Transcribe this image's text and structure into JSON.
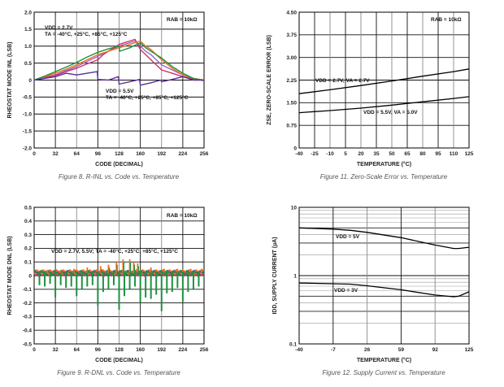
{
  "chart_data": [
    {
      "type": "line",
      "caption": "Figure 8. R-INL vs. Code vs. Temperature",
      "xlabel": "CODE (DECIMAL)",
      "ylabel": "RHEOSTAT MODE INL (LSB)",
      "xlim": [
        0,
        256
      ],
      "ylim": [
        -2.0,
        2.0
      ],
      "xticks": [
        "0",
        "32",
        "64",
        "96",
        "128",
        "160",
        "192",
        "224",
        "256"
      ],
      "yticks": [
        "2.0",
        "1.5",
        "1.0",
        "0.5",
        "0",
        "-0.5",
        "-1.0",
        "-1.5",
        "-2.0"
      ],
      "grid": true,
      "annotations": [
        "RAB = 10kΩ",
        "VDD = 2.7V",
        "TA = -40°C, +25°C, +85°C, +125°C",
        "VDD = 5.5V",
        "TA = -40°C, +25°C, +85°C, +125°C"
      ],
      "series": [
        {
          "color": "#8e6bbf",
          "x": [
            0,
            16,
            32,
            48,
            64,
            80,
            96,
            112,
            128,
            144,
            152,
            160,
            168,
            176,
            184,
            192,
            208,
            224,
            240,
            256
          ],
          "y": [
            0,
            0.08,
            0.15,
            0.28,
            0.4,
            0.55,
            0.7,
            0.85,
            1.0,
            1.1,
            1.15,
            1.0,
            0.85,
            0.75,
            0.6,
            0.45,
            0.3,
            0.15,
            0.05,
            0
          ]
        },
        {
          "color": "#d0306a",
          "x": [
            0,
            16,
            32,
            48,
            64,
            80,
            96,
            104,
            112,
            128,
            136,
            144,
            152,
            160,
            168,
            176,
            184,
            192,
            208,
            224,
            240,
            256
          ],
          "y": [
            0,
            0.07,
            0.14,
            0.25,
            0.35,
            0.48,
            0.6,
            0.75,
            0.85,
            1.05,
            1.1,
            1.15,
            1.2,
            0.9,
            0.75,
            0.6,
            0.45,
            0.3,
            0.2,
            0.1,
            0.03,
            0
          ]
        },
        {
          "color": "#f07020",
          "x": [
            0,
            16,
            32,
            48,
            64,
            80,
            96,
            112,
            128,
            144,
            160,
            168,
            176,
            184,
            192,
            208,
            224,
            240,
            256
          ],
          "y": [
            0,
            0.1,
            0.2,
            0.32,
            0.45,
            0.6,
            0.75,
            0.85,
            0.95,
            1.05,
            1.15,
            1.0,
            0.9,
            0.75,
            0.6,
            0.35,
            0.15,
            0.05,
            0
          ]
        },
        {
          "color": "#1e9040",
          "x": [
            0,
            16,
            32,
            48,
            64,
            80,
            96,
            112,
            128,
            129,
            144,
            160,
            168,
            176,
            184,
            192,
            208,
            224,
            240,
            256
          ],
          "y": [
            0,
            0.12,
            0.25,
            0.38,
            0.52,
            0.68,
            0.82,
            0.92,
            1.0,
            0.85,
            0.95,
            1.1,
            0.95,
            0.85,
            0.75,
            0.65,
            0.4,
            0.2,
            0.05,
            -0.02
          ]
        },
        {
          "color": "#5a2d9a",
          "x": [
            0,
            16,
            32,
            48,
            64,
            80,
            95,
            96,
            112,
            127,
            128,
            144,
            159,
            160,
            176,
            191,
            192,
            208,
            224,
            240,
            256
          ],
          "y": [
            0,
            0.05,
            0.1,
            0.2,
            0.15,
            0.2,
            0.25,
            0.02,
            0.0,
            0.1,
            -0.12,
            -0.05,
            0.02,
            -0.15,
            -0.08,
            0.0,
            -0.05,
            0.02,
            0.1,
            0.0,
            0.0
          ]
        }
      ]
    },
    {
      "type": "line",
      "caption": "Figure 11. Zero-Scale Error vs. Temperature",
      "xlabel": "TEMPERATURE (°C)",
      "ylabel": "ZSE, ZERO-SCALE ERROR (LSB)",
      "xlim": [
        -40,
        125
      ],
      "ylim": [
        0,
        4.5
      ],
      "xticks": [
        "-40",
        "-25",
        "-10",
        "5",
        "20",
        "35",
        "50",
        "65",
        "80",
        "95",
        "110",
        "125"
      ],
      "yticks": [
        "4.50",
        "3.75",
        "3.00",
        "2.25",
        "1.50",
        "0.75",
        "0"
      ],
      "grid": true,
      "annotations": [
        "RAB = 10kΩ",
        "VDD = 2.7V, VA = 2.7V",
        "VDD = 5.5V, VA = 5.0V"
      ],
      "series": [
        {
          "color": "#000000",
          "x": [
            -40,
            -10,
            20,
            50,
            80,
            110,
            125
          ],
          "y": [
            1.8,
            1.93,
            2.07,
            2.22,
            2.38,
            2.53,
            2.62
          ]
        },
        {
          "color": "#000000",
          "x": [
            -40,
            -10,
            20,
            50,
            80,
            110,
            125
          ],
          "y": [
            1.17,
            1.24,
            1.32,
            1.42,
            1.53,
            1.64,
            1.7
          ]
        }
      ]
    },
    {
      "type": "line",
      "caption": "Figure 9. R-DNL vs. Code vs. Temperature",
      "xlabel": "CODE (DECIMAL)",
      "ylabel": "RHEOSTAT MODE DNL (LSB)",
      "xlim": [
        0,
        256
      ],
      "ylim": [
        -0.5,
        0.5
      ],
      "xticks": [
        "0",
        "32",
        "64",
        "96",
        "128",
        "160",
        "192",
        "224",
        "256"
      ],
      "yticks": [
        "0.5",
        "0.4",
        "0.3",
        "0.2",
        "0.1",
        "0",
        "-0.1",
        "-0.2",
        "-0.3",
        "-0.4",
        "-0.5"
      ],
      "grid": true,
      "annotations": [
        "RAB = 10kΩ",
        "VDD = 2.7V, 5.5V; TA = -40°C, +25°C, +85°C, +125°C"
      ],
      "series": [
        {
          "color": "#1e9040",
          "x": [
            8,
            16,
            24,
            32,
            40,
            48,
            56,
            64,
            72,
            80,
            88,
            96,
            104,
            112,
            120,
            128,
            136,
            144,
            152,
            160,
            168,
            176,
            184,
            192,
            200,
            208,
            216,
            224,
            232,
            240,
            248
          ],
          "y": [
            -0.07,
            -0.08,
            -0.06,
            -0.16,
            -0.07,
            -0.09,
            -0.08,
            -0.15,
            -0.1,
            -0.08,
            -0.07,
            -0.22,
            -0.12,
            -0.1,
            -0.07,
            -0.25,
            -0.15,
            -0.1,
            -0.08,
            -0.2,
            -0.16,
            -0.17,
            -0.14,
            -0.26,
            -0.13,
            -0.12,
            -0.09,
            -0.19,
            -0.12,
            -0.1,
            -0.08
          ]
        },
        {
          "color": "#f07020",
          "x": [
            20,
            40,
            60,
            80,
            100,
            112,
            124,
            134,
            144,
            150,
            156,
            176,
            196,
            216,
            236,
            252
          ],
          "y": [
            0.04,
            0.04,
            0.05,
            0.06,
            0.07,
            0.08,
            0.1,
            0.12,
            0.12,
            0.1,
            0.09,
            0.06,
            0.05,
            0.05,
            0.05,
            0.05
          ]
        }
      ]
    },
    {
      "type": "line",
      "caption": "Figure 12. Supply Current vs. Temperature",
      "xlabel": "TEMPERATURE (°C)",
      "ylabel": "IDD, SUPPLY CURRENT (µA)",
      "xlim": [
        -40,
        125
      ],
      "ylim": [
        0.1,
        10
      ],
      "yscale": "log",
      "xticks": [
        "-40",
        "-7",
        "26",
        "59",
        "92",
        "125"
      ],
      "yticks": [
        "10",
        "1",
        "0.1"
      ],
      "grid": true,
      "annotations": [
        "VDD = 5V",
        "VDD = 3V"
      ],
      "series": [
        {
          "color": "#000000",
          "x": [
            -40,
            -7,
            10,
            26,
            59,
            92,
            110,
            115,
            125
          ],
          "y": [
            5.0,
            4.8,
            4.6,
            4.3,
            3.6,
            2.8,
            2.5,
            2.5,
            2.6
          ]
        },
        {
          "color": "#000000",
          "x": [
            -40,
            -7,
            10,
            26,
            59,
            92,
            110,
            115,
            125
          ],
          "y": [
            0.78,
            0.76,
            0.75,
            0.71,
            0.62,
            0.52,
            0.49,
            0.5,
            0.58
          ]
        }
      ]
    }
  ]
}
